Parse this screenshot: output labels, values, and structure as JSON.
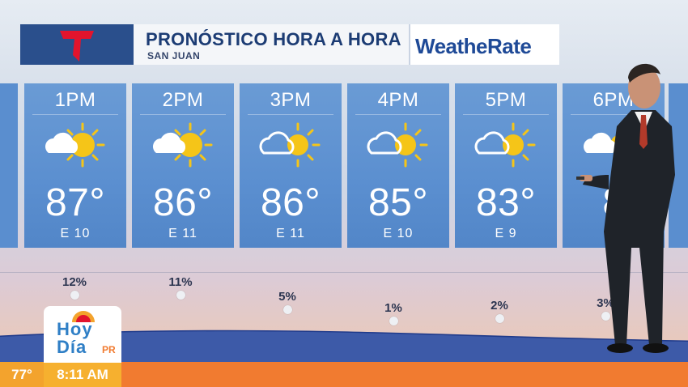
{
  "header": {
    "title": "PRONÓSTICO HORA A HORA",
    "subtitle": "SAN JUAN",
    "sponsor": "WeatheRate",
    "logo": "telemundo-t-logo"
  },
  "hours": [
    {
      "time": "1PM",
      "temp": "87°",
      "wind": "E 10",
      "icon": "sun-behind-cloud-icon",
      "precip": "12%"
    },
    {
      "time": "2PM",
      "temp": "86°",
      "wind": "E 11",
      "icon": "sun-behind-cloud-icon",
      "precip": "11%"
    },
    {
      "time": "3PM",
      "temp": "86°",
      "wind": "E 11",
      "icon": "sun-behind-cloud-icon",
      "precip": "5%"
    },
    {
      "time": "4PM",
      "temp": "85°",
      "wind": "E 10",
      "icon": "sun-behind-cloud-icon",
      "precip": "1%"
    },
    {
      "time": "5PM",
      "temp": "83°",
      "wind": "E 9",
      "icon": "sun-behind-cloud-icon",
      "precip": "2%"
    },
    {
      "time": "6PM",
      "temp": "8",
      "wind": "E",
      "icon": "sun-behind-cloud-icon",
      "precip": "3%"
    }
  ],
  "brand": {
    "show_line1": "Hoy",
    "show_line2": "Día",
    "show_suffix": "PR"
  },
  "ticker": {
    "current_temp": "77°",
    "clock": "8:11 AM"
  },
  "colors": {
    "card_blue": "#5b8fd0",
    "header_navy": "#1c3c74",
    "ticker_orange": "#f17b30",
    "ticker_yellow": "#f6b02f",
    "sun_yellow": "#f5c518"
  }
}
